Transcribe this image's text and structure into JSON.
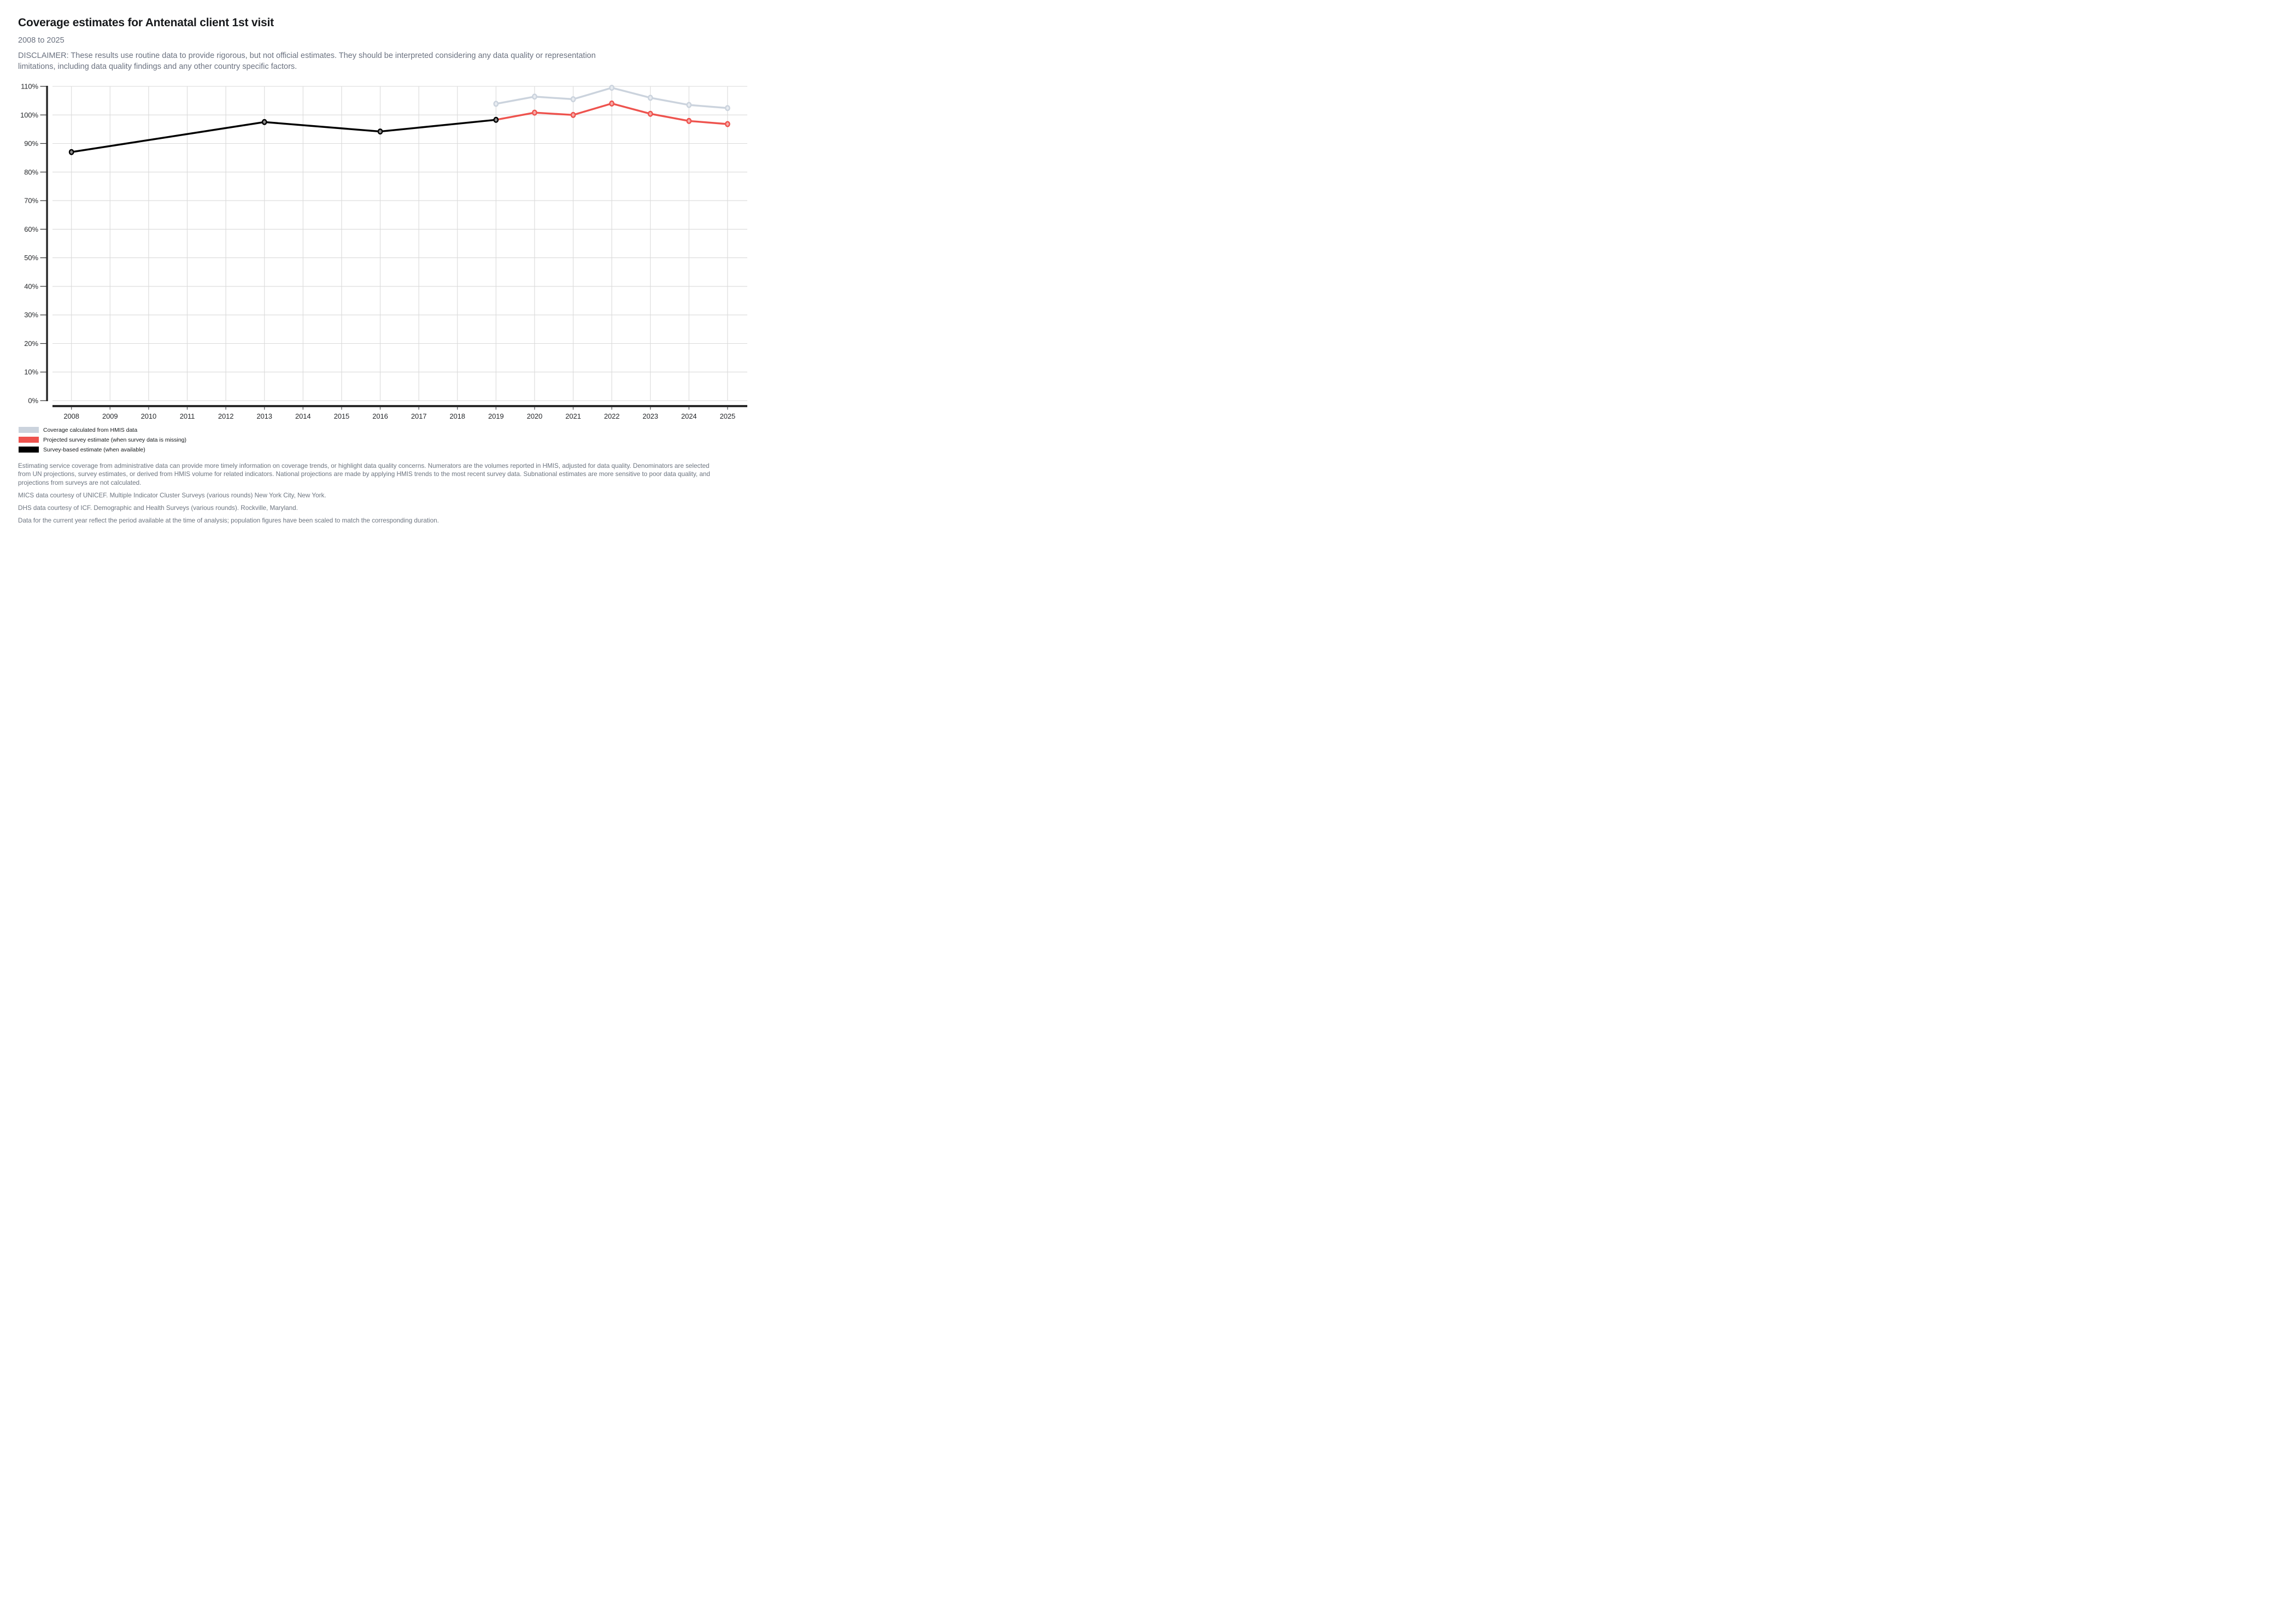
{
  "header": {
    "title": "Coverage estimates for Antenatal client 1st visit",
    "subtitle": "2008 to 2025",
    "disclaimer_lines": [
      "DISCLAIMER: These results use routine data to provide rigorous, but not official estimates. They should be interpreted considering any data quality or representation",
      "limitations, including data quality findings and any other country specific factors."
    ]
  },
  "chart_data": {
    "type": "line",
    "title": "Coverage estimates for Antenatal client 1st visit",
    "x_years": [
      2008,
      2009,
      2010,
      2011,
      2012,
      2013,
      2014,
      2015,
      2016,
      2017,
      2018,
      2019,
      2020,
      2021,
      2022,
      2023,
      2024,
      2025
    ],
    "xlabel": "",
    "ylabel": "",
    "ylim": [
      0,
      110
    ],
    "ytick_step": 10,
    "ytick_labels": [
      "0%",
      "10%",
      "20%",
      "30%",
      "40%",
      "50%",
      "60%",
      "70%",
      "80%",
      "90%",
      "100%",
      "110%"
    ],
    "grid": true,
    "legend_position": "bottom-left",
    "colors": {
      "hmis": "#cbd3dd",
      "projected": "#ee534e",
      "survey": "#000000",
      "gridline": "#dadada",
      "axis": "#2a2a2a"
    },
    "series": [
      {
        "id": "hmis",
        "name": "Coverage calculated from HMIS data",
        "color": "#cbd3dd",
        "marker_fill": "#e8ecf1",
        "points": [
          [
            2019,
            103.9
          ],
          [
            2020,
            106.4
          ],
          [
            2021,
            105.5
          ],
          [
            2022,
            109.5
          ],
          [
            2023,
            106.0
          ],
          [
            2024,
            103.5
          ],
          [
            2025,
            102.4
          ]
        ]
      },
      {
        "id": "projected",
        "name": "Projected survey estimate (when survey data is missing)",
        "color": "#ee534e",
        "marker_fill": "#f6aba8",
        "skip_first_marker": true,
        "points": [
          [
            2019,
            98.3
          ],
          [
            2020,
            100.8
          ],
          [
            2021,
            100.0
          ],
          [
            2022,
            104.0
          ],
          [
            2023,
            100.4
          ],
          [
            2024,
            97.9
          ],
          [
            2025,
            96.8
          ]
        ]
      },
      {
        "id": "survey",
        "name": "Survey-based estimate (when available)",
        "color": "#000000",
        "marker_fill": "#8c8c8c",
        "points": [
          [
            2008,
            87.0
          ],
          [
            2013,
            97.5
          ],
          [
            2016,
            94.2
          ],
          [
            2019,
            98.3
          ]
        ]
      }
    ]
  },
  "footer": {
    "paragraph_lines": [
      "Estimating service coverage from administrative data can provide more timely information on coverage trends, or highlight data quality concerns. Numerators are the volumes reported in HMIS, adjusted for data quality. Denominators are selected",
      "from UN projections, survey estimates, or derived from HMIS volume for related indicators. National projections are made by applying HMIS trends to the most recent survey data. Subnational estimates are more sensitive to poor data quality, and",
      "projections from surveys are not calculated."
    ],
    "mics": "MICS data courtesy of UNICEF. Multiple Indicator Cluster Surveys (various rounds) New York City, New York.",
    "dhs": "DHS data courtesy of ICF. Demographic and Health Surveys (various rounds). Rockville, Maryland.",
    "current_year_note": "Data for the current year reflect the period available at the time of analysis; population figures have been scaled to match the corresponding duration."
  }
}
